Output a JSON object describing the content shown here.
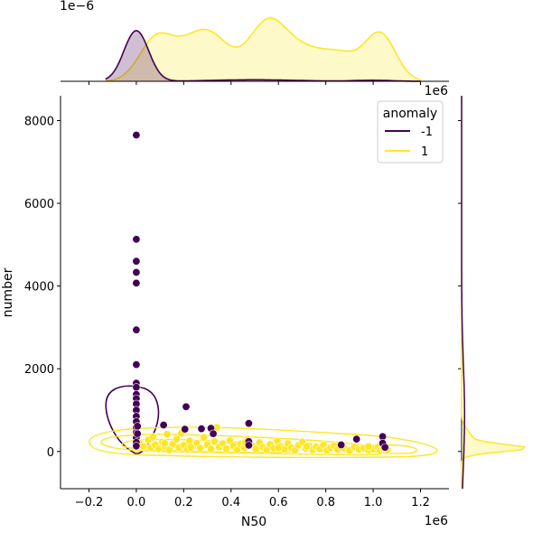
{
  "chart_data": {
    "type": "scatter",
    "xlabel": "N50",
    "ylabel": "number",
    "xlim": [
      -320000,
      1320000
    ],
    "ylim": [
      -900,
      8600
    ],
    "x_ticks": [
      -200000,
      0,
      200000,
      400000,
      600000,
      800000,
      1000000,
      1200000
    ],
    "x_tick_labels": [
      "−0.2",
      "0.0",
      "0.2",
      "0.4",
      "0.6",
      "0.8",
      "1.0",
      "1.2"
    ],
    "y_ticks": [
      0,
      2000,
      4000,
      6000,
      8000
    ],
    "y_tick_labels": [
      "0",
      "2000",
      "4000",
      "6000",
      "8000"
    ],
    "x_scale_label": "1e6",
    "top_density_scale_label": "1e−6",
    "right_density_scale_label": "1e6",
    "legend": {
      "title": "anomaly",
      "placement": "top-right",
      "entries": [
        {
          "label": "-1",
          "color": "#440154"
        },
        {
          "label": "1",
          "color": "#fde725"
        }
      ]
    },
    "series": [
      {
        "name": "-1",
        "color": "#440154",
        "points": [
          [
            0,
            7650
          ],
          [
            0,
            5130
          ],
          [
            0,
            4600
          ],
          [
            0,
            4330
          ],
          [
            0,
            4070
          ],
          [
            0,
            2940
          ],
          [
            0,
            2100
          ],
          [
            0,
            1650
          ],
          [
            0,
            1550
          ],
          [
            0,
            1380
          ],
          [
            0,
            1280
          ],
          [
            0,
            1150
          ],
          [
            0,
            1000
          ],
          [
            0,
            850
          ],
          [
            0,
            720
          ],
          [
            0,
            580
          ],
          [
            0,
            460
          ],
          [
            0,
            330
          ],
          [
            0,
            220
          ],
          [
            0,
            130
          ],
          [
            5000,
            610
          ],
          [
            5000,
            430
          ],
          [
            115000,
            640
          ],
          [
            210000,
            1080
          ],
          [
            205000,
            540
          ],
          [
            275000,
            550
          ],
          [
            315000,
            560
          ],
          [
            325000,
            430
          ],
          [
            475000,
            680
          ],
          [
            475000,
            240
          ],
          [
            475000,
            150
          ],
          [
            865000,
            160
          ],
          [
            930000,
            300
          ],
          [
            1040000,
            360
          ],
          [
            1040000,
            200
          ],
          [
            1050000,
            100
          ]
        ]
      },
      {
        "name": "1",
        "color": "#fde725",
        "points": [
          [
            15000,
            200
          ],
          [
            30000,
            120
          ],
          [
            50000,
            280
          ],
          [
            60000,
            90
          ],
          [
            70000,
            350
          ],
          [
            80000,
            160
          ],
          [
            95000,
            60
          ],
          [
            110000,
            230
          ],
          [
            120000,
            130
          ],
          [
            130000,
            420
          ],
          [
            140000,
            40
          ],
          [
            155000,
            180
          ],
          [
            170000,
            300
          ],
          [
            180000,
            90
          ],
          [
            190000,
            440
          ],
          [
            200000,
            150
          ],
          [
            215000,
            50
          ],
          [
            225000,
            260
          ],
          [
            240000,
            120
          ],
          [
            255000,
            200
          ],
          [
            270000,
            80
          ],
          [
            285000,
            340
          ],
          [
            300000,
            160
          ],
          [
            315000,
            60
          ],
          [
            330000,
            240
          ],
          [
            340000,
            580
          ],
          [
            350000,
            110
          ],
          [
            365000,
            190
          ],
          [
            380000,
            70
          ],
          [
            395000,
            260
          ],
          [
            410000,
            130
          ],
          [
            425000,
            40
          ],
          [
            440000,
            180
          ],
          [
            455000,
            90
          ],
          [
            470000,
            300
          ],
          [
            490000,
            140
          ],
          [
            505000,
            60
          ],
          [
            520000,
            210
          ],
          [
            535000,
            100
          ],
          [
            550000,
            40
          ],
          [
            565000,
            170
          ],
          [
            580000,
            80
          ],
          [
            595000,
            250
          ],
          [
            610000,
            120
          ],
          [
            625000,
            50
          ],
          [
            640000,
            190
          ],
          [
            655000,
            90
          ],
          [
            670000,
            30
          ],
          [
            685000,
            150
          ],
          [
            700000,
            230
          ],
          [
            715000,
            70
          ],
          [
            730000,
            130
          ],
          [
            745000,
            40
          ],
          [
            760000,
            110
          ],
          [
            775000,
            60
          ],
          [
            790000,
            160
          ],
          [
            805000,
            30
          ],
          [
            820000,
            90
          ],
          [
            835000,
            140
          ],
          [
            850000,
            50
          ],
          [
            880000,
            70
          ],
          [
            900000,
            20
          ],
          [
            920000,
            110
          ],
          [
            940000,
            50
          ],
          [
            960000,
            80
          ],
          [
            980000,
            30
          ],
          [
            1000000,
            60
          ],
          [
            1020000,
            100
          ],
          [
            1030000,
            20
          ],
          [
            1045000,
            50
          ],
          [
            1055000,
            10
          ],
          [
            1060000,
            30
          ],
          [
            120000,
            200
          ],
          [
            230000,
            100
          ],
          [
            460000,
            220
          ],
          [
            600000,
            90
          ],
          [
            720000,
            120
          ],
          [
            980000,
            120
          ]
        ]
      }
    ]
  }
}
